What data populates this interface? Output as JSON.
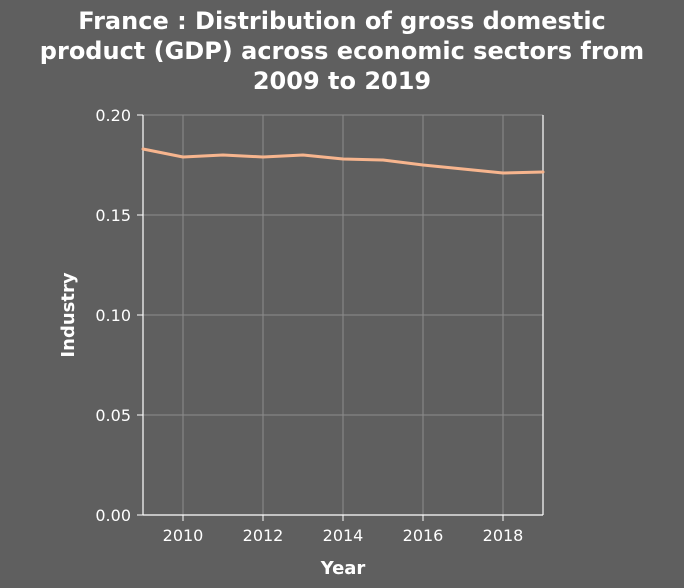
{
  "chart_data": {
    "type": "line",
    "title_lines": [
      "France : Distribution of gross domestic",
      "product (GDP) across economic sectors from",
      "2009 to 2019"
    ],
    "xlabel": "Year",
    "ylabel": "Industry",
    "xlim": [
      2009,
      2019
    ],
    "ylim": [
      0,
      0.2
    ],
    "x_ticks": [
      2010,
      2012,
      2014,
      2016,
      2018
    ],
    "y_ticks": [
      0.0,
      0.05,
      0.1,
      0.15,
      0.2
    ],
    "x_tick_labels": [
      "2010",
      "2012",
      "2014",
      "2016",
      "2018"
    ],
    "y_tick_labels": [
      "0.00",
      "0.05",
      "0.10",
      "0.15",
      "0.20"
    ],
    "grid": true,
    "series": [
      {
        "color": "#f7b58e",
        "x": [
          2009,
          2010,
          2011,
          2012,
          2013,
          2014,
          2015,
          2016,
          2017,
          2018,
          2019
        ],
        "y": [
          0.183,
          0.179,
          0.18,
          0.179,
          0.18,
          0.178,
          0.1775,
          0.175,
          0.173,
          0.171,
          0.1715
        ]
      }
    ]
  }
}
